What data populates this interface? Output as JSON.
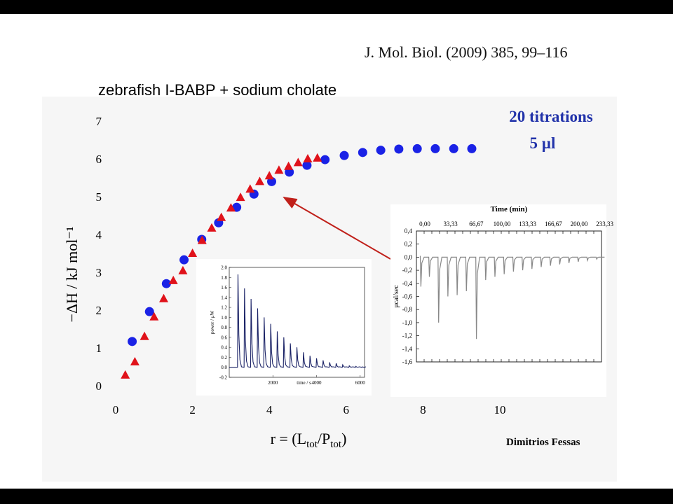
{
  "citation": "J. Mol. Biol. (2009) 385, 99–116",
  "slide_title": "zebrafish I-BABP  +  sodium cholate",
  "author": "Dimitrios Fessas",
  "annotation": {
    "line1": "20 titrations",
    "line2": "5 µl",
    "color": "#2233aa"
  },
  "colors": {
    "blue_series": "#1a22e6",
    "red_series": "#e0121a",
    "arrow": "#c0201a"
  },
  "chart_data": [
    {
      "type": "scatter",
      "xlabel": "r = (L_tot/P_tot)",
      "ylabel": "−ΔH / kJ mol⁻¹",
      "xlim": [
        0,
        10
      ],
      "ylim": [
        0,
        7
      ],
      "xticks": [
        "0",
        "2",
        "4",
        "6",
        "8",
        "10"
      ],
      "yticks": [
        "0",
        "1",
        "2",
        "3",
        "4",
        "5",
        "6",
        "7"
      ],
      "series": [
        {
          "marker": "circle",
          "color": "#1a22e6",
          "x": [
            0.43,
            0.88,
            1.32,
            1.78,
            2.24,
            2.68,
            3.15,
            3.6,
            4.06,
            4.52,
            4.98,
            5.45,
            5.95,
            6.43,
            6.9,
            7.37,
            7.85,
            8.32,
            8.8,
            9.27
          ],
          "y": [
            1.17,
            1.96,
            2.7,
            3.33,
            3.87,
            4.31,
            4.72,
            5.07,
            5.4,
            5.65,
            5.83,
            5.98,
            6.09,
            6.17,
            6.23,
            6.26,
            6.27,
            6.27,
            6.27,
            6.27
          ]
        },
        {
          "marker": "triangle",
          "color": "#e0121a",
          "x": [
            0.25,
            0.5,
            0.75,
            1.0,
            1.25,
            1.5,
            1.75,
            2.0,
            2.25,
            2.5,
            2.75,
            3.0,
            3.25,
            3.5,
            3.75,
            4.0,
            4.25,
            4.5,
            4.75,
            5.0,
            5.25
          ],
          "y": [
            0.28,
            0.63,
            1.3,
            1.82,
            2.3,
            2.78,
            3.04,
            3.5,
            3.84,
            4.17,
            4.45,
            4.7,
            4.98,
            5.2,
            5.4,
            5.55,
            5.7,
            5.8,
            5.9,
            6.0,
            6.02
          ]
        }
      ]
    },
    {
      "type": "line",
      "xlabel": "time / s",
      "ylabel": "power / μW",
      "xlim": [
        0,
        6200
      ],
      "ylim": [
        -0.2,
        2.0
      ],
      "xticks": [
        "2000",
        "4000",
        "6000"
      ],
      "yticks": [
        "-0.2",
        "0.0",
        "0.2",
        "0.4",
        "0.6",
        "0.8",
        "1.0",
        "1.2",
        "1.4",
        "1.6",
        "1.8",
        "2.0"
      ],
      "series": [
        {
          "name": "",
          "color": "#1a2266",
          "peak_times": [
            400,
            700,
            1000,
            1300,
            1600,
            1900,
            2200,
            2500,
            2800,
            3100,
            3400,
            3700,
            4000,
            4300,
            4600,
            4900,
            5200,
            5500,
            5800,
            6100
          ],
          "peak_heights": [
            1.86,
            1.58,
            1.37,
            1.18,
            1.0,
            0.87,
            0.72,
            0.6,
            0.48,
            0.4,
            0.3,
            0.23,
            0.18,
            0.14,
            0.1,
            0.08,
            0.05,
            0.03,
            0.02,
            0.01
          ]
        }
      ]
    },
    {
      "type": "line",
      "title": "Time (min)",
      "ylabel": "μcal/sec",
      "xlim": [
        0,
        240
      ],
      "ylim": [
        -1.6,
        0.4
      ],
      "xticks_top": [
        "0,00",
        "33,33",
        "66,67",
        "100,00",
        "133,33",
        "166,67",
        "200,00",
        "233,33"
      ],
      "yticks": [
        "0,4",
        "0,2",
        "0,0",
        "-0,2",
        "-0,4",
        "-0,6",
        "-0,8",
        "-1,0",
        "-1,2",
        "-1,4",
        "-1,6"
      ],
      "series": [
        {
          "name": "",
          "color": "#888888",
          "peak_times": [
            5,
            16,
            28,
            40,
            52,
            64,
            77,
            89,
            101,
            113,
            125,
            137,
            149,
            161,
            173,
            185,
            197,
            209,
            221,
            233
          ],
          "peak_depths": [
            -0.45,
            -0.3,
            -1.0,
            -0.6,
            -0.58,
            -0.52,
            -1.25,
            -0.35,
            -0.3,
            -0.26,
            -0.22,
            -0.2,
            -0.18,
            -0.15,
            -0.13,
            -0.11,
            -0.09,
            -0.07,
            -0.05,
            -0.03
          ]
        }
      ]
    }
  ]
}
